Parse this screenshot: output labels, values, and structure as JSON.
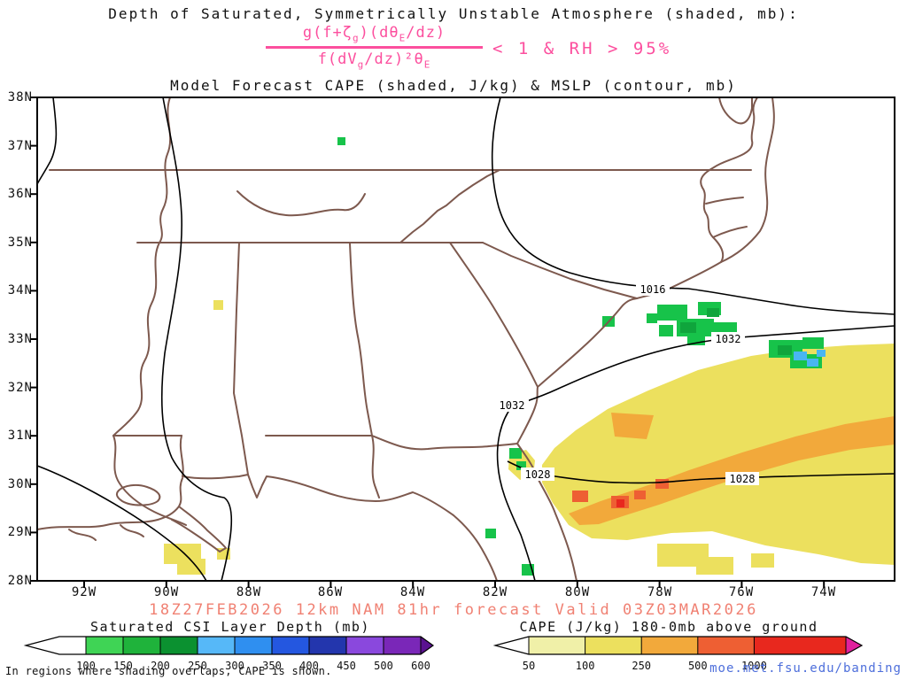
{
  "colors": {
    "formula_pink": "#fc4f9e",
    "forecast_red": "#f08173",
    "credit_blue": "#4e6fdb",
    "border_brown": "#7d594e",
    "contour_black": "#000000",
    "cape_yellow": "#ece05e",
    "cape_orange": "#f2a93b",
    "cape_red_orange": "#ee5f33",
    "cape_red": "#e8281e",
    "csi_green": "#17c34a",
    "csi_green_dark": "#0fa53c",
    "csi_blue": "#49b6f2"
  },
  "header": {
    "title": "Depth of Saturated, Symmetrically Unstable Atmosphere (shaded, mb):",
    "formula": {
      "numerator_html": "g(f+&#950;<sub>g</sub>)(d&#952;<sub>E</sub>/dz)",
      "denominator_html": "f(dV<sub>g</sub>/dz)&#178;&#952;<sub>E</sub>",
      "condition": "< 1 & RH > 95%"
    },
    "subtitle": "Model Forecast CAPE (shaded, J/kg) & MSLP (contour, mb)"
  },
  "map": {
    "lat_labels": [
      "38N",
      "37N",
      "36N",
      "35N",
      "34N",
      "33N",
      "32N",
      "31N",
      "30N",
      "29N",
      "28N"
    ],
    "lon_labels": [
      "92W",
      "90W",
      "88W",
      "86W",
      "84W",
      "82W",
      "80W",
      "78W",
      "76W",
      "74W"
    ],
    "contour_labels": [
      {
        "text": "1016"
      },
      {
        "text": "1032"
      },
      {
        "text": "1032"
      },
      {
        "text": "1028"
      },
      {
        "text": "1028"
      }
    ]
  },
  "footer": {
    "forecast_line": "18Z27FEB2026 12km NAM 81hr forecast Valid 03Z03MAR2026",
    "note": "In regions where shading overlaps, CAPE is shown.",
    "credit": "moe.met.fsu.edu/banding"
  },
  "legend_csi": {
    "title": "Saturated CSI Layer Depth (mb)",
    "ticks": [
      "100",
      "150",
      "200",
      "250",
      "300",
      "350",
      "400",
      "450",
      "500",
      "600"
    ],
    "colors": [
      "#ffffff",
      "#3fd455",
      "#1fb33b",
      "#0b9130",
      "#56b8f8",
      "#2f8ff0",
      "#2457e0",
      "#2336ad",
      "#8a48dd",
      "#7a27b8",
      "#5a1190"
    ]
  },
  "legend_cape": {
    "title": "CAPE (J/kg) 180-0mb above ground",
    "ticks": [
      "50",
      "100",
      "250",
      "500",
      "1000"
    ],
    "colors": [
      "#ffffff",
      "#f0f0a8",
      "#ece05e",
      "#f2a93b",
      "#ee5f33",
      "#e8281e",
      "#e0219d"
    ]
  },
  "chart_data": {
    "type": "heatmap",
    "title": "Model Forecast CAPE (shaded, J/kg) & MSLP (contour, mb)",
    "overlay_title": "Depth of Saturated, Symmetrically Unstable Atmosphere (shaded, mb)",
    "condition": "g(f+zeta_g)(d theta_E/dz) / [f(dV_g/dz)^2 theta_E] < 1 & RH > 95%",
    "model_run": "18Z27FEB2026",
    "model": "12km NAM",
    "forecast_hour": "81hr",
    "valid_time": "03Z03MAR2026",
    "x_axis": {
      "label": "longitude",
      "ticks": [
        "92W",
        "90W",
        "88W",
        "86W",
        "84W",
        "82W",
        "80W",
        "78W",
        "76W",
        "74W"
      ]
    },
    "y_axis": {
      "label": "latitude",
      "ticks": [
        "38N",
        "37N",
        "36N",
        "35N",
        "34N",
        "33N",
        "32N",
        "31N",
        "30N",
        "29N",
        "28N"
      ]
    },
    "mslp_contours_mb": [
      1016,
      1028,
      1032
    ],
    "colorbars": [
      {
        "name": "Saturated CSI Layer Depth (mb)",
        "tick_values": [
          100,
          150,
          200,
          250,
          300,
          350,
          400,
          450,
          500,
          600
        ],
        "colors": [
          "#3fd455",
          "#1fb33b",
          "#0b9130",
          "#56b8f8",
          "#2f8ff0",
          "#2457e0",
          "#2336ad",
          "#8a48dd",
          "#7a27b8",
          "#5a1190"
        ]
      },
      {
        "name": "CAPE (J/kg) 180-0mb above ground",
        "tick_values": [
          50,
          100,
          250,
          500,
          1000
        ],
        "colors": [
          "#f0f0a8",
          "#ece05e",
          "#f2a93b",
          "#ee5f33",
          "#e8281e",
          "#e0219d"
        ]
      }
    ],
    "features": [
      {
        "value": "CAPE 100-250 J/kg",
        "location": "broad area over the western Atlantic from ~81W to 72W between ~28N and 33.5N"
      },
      {
        "value": "CAPE 250-500 J/kg",
        "location": "elongated SW-NE band through the middle of the CAPE area from ~30N,80W to ~32.5N,73W"
      },
      {
        "value": "CAPE 500-1000 J/kg",
        "location": "small cores near 29.5-30N between 78W and 80W"
      },
      {
        "value": "CSI depth 100-250 mb",
        "location": "patches off the Carolinas coast near 33-34N 76-78W and 32.5-33N 73.5-74.5W; small spots along GA/FL coast"
      },
      {
        "value": "CSI depth 250-350 mb",
        "location": "small embedded blue spots near 32.7N 74W"
      }
    ]
  }
}
